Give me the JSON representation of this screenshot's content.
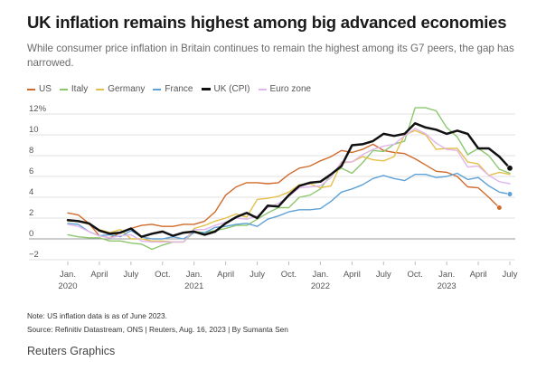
{
  "header": {
    "title": "UK inflation remains highest among big advanced economies",
    "subtitle": "While consumer price inflation in Britain continues to remain the highest among its G7 peers, the gap has narrowed."
  },
  "footer": {
    "note": "Note: US inflation data is as of June 2023.",
    "source": "Source: Refinitiv Datastream, ONS | Reuters, Aug. 16, 2023 | By Sumanta Sen",
    "brand": "Reuters Graphics"
  },
  "chart_data": {
    "type": "line",
    "x": [
      "2020-01",
      "2020-02",
      "2020-03",
      "2020-04",
      "2020-05",
      "2020-06",
      "2020-07",
      "2020-08",
      "2020-09",
      "2020-10",
      "2020-11",
      "2020-12",
      "2021-01",
      "2021-02",
      "2021-03",
      "2021-04",
      "2021-05",
      "2021-06",
      "2021-07",
      "2021-08",
      "2021-09",
      "2021-10",
      "2021-11",
      "2021-12",
      "2022-01",
      "2022-02",
      "2022-03",
      "2022-04",
      "2022-05",
      "2022-06",
      "2022-07",
      "2022-08",
      "2022-09",
      "2022-10",
      "2022-11",
      "2022-12",
      "2023-01",
      "2023-02",
      "2023-03",
      "2023-04",
      "2023-05",
      "2023-06",
      "2023-07"
    ],
    "xticks": [
      {
        "label": "Jan.",
        "sub": "2020",
        "x": "2020-01"
      },
      {
        "label": "April",
        "sub": "",
        "x": "2020-04"
      },
      {
        "label": "July",
        "sub": "",
        "x": "2020-07"
      },
      {
        "label": "Oct.",
        "sub": "",
        "x": "2020-10"
      },
      {
        "label": "Jan.",
        "sub": "2021",
        "x": "2021-01"
      },
      {
        "label": "April",
        "sub": "",
        "x": "2021-04"
      },
      {
        "label": "July",
        "sub": "",
        "x": "2021-07"
      },
      {
        "label": "Oct.",
        "sub": "",
        "x": "2021-10"
      },
      {
        "label": "Jan.",
        "sub": "2022",
        "x": "2022-01"
      },
      {
        "label": "April",
        "sub": "",
        "x": "2022-04"
      },
      {
        "label": "July",
        "sub": "",
        "x": "2022-07"
      },
      {
        "label": "Oct.",
        "sub": "",
        "x": "2022-10"
      },
      {
        "label": "Jan.",
        "sub": "2023",
        "x": "2023-01"
      },
      {
        "label": "April",
        "sub": "",
        "x": "2023-04"
      },
      {
        "label": "July",
        "sub": "",
        "x": "2023-07"
      }
    ],
    "yticks": [
      {
        "value": 12,
        "label": "12%"
      },
      {
        "value": 10,
        "label": "10"
      },
      {
        "value": 8,
        "label": "8"
      },
      {
        "value": 6,
        "label": "6"
      },
      {
        "value": 4,
        "label": "4"
      },
      {
        "value": 2,
        "label": "2"
      },
      {
        "value": 0,
        "label": "0"
      },
      {
        "value": -2,
        "label": "−2"
      }
    ],
    "ylim": [
      -2,
      12
    ],
    "grid": "horizontal",
    "legend_position": "top-left",
    "series": [
      {
        "name": "US",
        "color": "#d06a2b",
        "width": 1.4,
        "end_marker": true,
        "values": [
          2.5,
          2.3,
          1.5,
          0.3,
          0.1,
          0.6,
          1.0,
          1.3,
          1.4,
          1.2,
          1.2,
          1.4,
          1.4,
          1.7,
          2.6,
          4.2,
          5.0,
          5.4,
          5.4,
          5.3,
          5.4,
          6.2,
          6.8,
          7.0,
          7.5,
          7.9,
          8.5,
          8.3,
          8.6,
          9.1,
          8.5,
          8.3,
          8.2,
          7.7,
          7.1,
          6.5,
          6.4,
          6.0,
          5.0,
          4.9,
          4.0,
          3.0,
          null
        ]
      },
      {
        "name": "Italy",
        "color": "#8cc76e",
        "width": 1.4,
        "end_marker": false,
        "values": [
          0.4,
          0.2,
          0.1,
          0.1,
          -0.2,
          -0.2,
          -0.4,
          -0.5,
          -1.0,
          -0.6,
          -0.3,
          -0.3,
          0.7,
          0.6,
          0.8,
          1.0,
          1.3,
          1.3,
          1.9,
          2.5,
          3.0,
          3.0,
          4.0,
          4.2,
          4.8,
          6.2,
          6.8,
          6.3,
          7.3,
          8.5,
          8.4,
          9.1,
          9.4,
          12.6,
          12.6,
          12.3,
          10.7,
          9.8,
          8.1,
          8.7,
          8.0,
          6.7,
          6.3
        ]
      },
      {
        "name": "Germany",
        "color": "#e4c04a",
        "width": 1.4,
        "end_marker": false,
        "values": [
          1.7,
          1.7,
          1.4,
          0.9,
          0.6,
          0.9,
          0.0,
          0.0,
          -0.2,
          -0.2,
          -0.3,
          -0.3,
          1.0,
          1.3,
          1.7,
          2.0,
          2.4,
          2.1,
          3.8,
          3.9,
          4.1,
          4.5,
          5.2,
          5.3,
          4.9,
          5.1,
          7.3,
          7.4,
          7.9,
          7.6,
          7.5,
          7.9,
          10.0,
          10.4,
          10.0,
          8.6,
          8.7,
          8.7,
          7.4,
          7.2,
          6.1,
          6.4,
          6.2
        ]
      },
      {
        "name": "France",
        "color": "#5ea1d6",
        "width": 1.4,
        "end_marker": true,
        "values": [
          1.5,
          1.4,
          0.7,
          0.3,
          0.4,
          0.2,
          0.8,
          0.2,
          0.0,
          0.0,
          0.2,
          0.0,
          0.6,
          0.6,
          1.1,
          1.2,
          1.4,
          1.5,
          1.2,
          1.9,
          2.2,
          2.6,
          2.8,
          2.8,
          2.9,
          3.6,
          4.5,
          4.8,
          5.2,
          5.8,
          6.1,
          5.8,
          5.6,
          6.2,
          6.2,
          5.9,
          6.0,
          6.3,
          5.7,
          5.9,
          5.1,
          4.5,
          4.3
        ]
      },
      {
        "name": "UK (CPI)",
        "color": "#111111",
        "width": 2.5,
        "end_marker": true,
        "values": [
          1.8,
          1.7,
          1.5,
          0.8,
          0.5,
          0.6,
          1.0,
          0.2,
          0.5,
          0.7,
          0.3,
          0.6,
          0.7,
          0.4,
          0.7,
          1.5,
          2.1,
          2.5,
          2.0,
          3.2,
          3.1,
          4.2,
          5.1,
          5.4,
          5.5,
          6.2,
          7.0,
          9.0,
          9.1,
          9.4,
          10.1,
          9.9,
          10.1,
          11.1,
          10.7,
          10.5,
          10.1,
          10.4,
          10.1,
          8.7,
          8.7,
          7.9,
          6.8
        ]
      },
      {
        "name": "Euro zone",
        "color": "#e0b6ec",
        "width": 1.4,
        "end_marker": false,
        "values": [
          1.4,
          1.2,
          0.7,
          0.3,
          0.1,
          0.3,
          0.4,
          -0.2,
          -0.3,
          -0.3,
          -0.3,
          -0.3,
          0.9,
          0.9,
          1.3,
          1.6,
          2.0,
          1.9,
          2.2,
          3.0,
          3.4,
          4.1,
          4.9,
          5.0,
          5.1,
          5.9,
          7.4,
          7.4,
          8.1,
          8.6,
          8.9,
          9.1,
          9.9,
          10.6,
          10.1,
          9.2,
          8.6,
          8.5,
          6.9,
          7.0,
          6.1,
          5.5,
          5.3
        ]
      }
    ]
  }
}
